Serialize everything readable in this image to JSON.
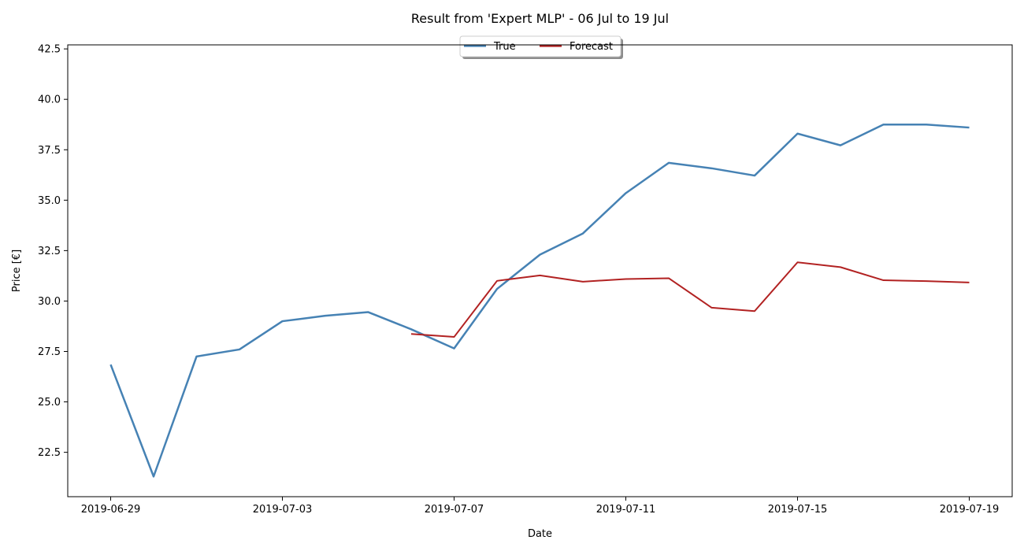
{
  "chart_data": {
    "type": "line",
    "title": "Result from 'Expert MLP' - 06 Jul to 19 Jul",
    "xlabel": "Date",
    "ylabel": "Price [€]",
    "xlim": [
      "2019-06-28",
      "2019-07-20"
    ],
    "ylim": [
      20.3,
      42.7
    ],
    "x_ticks": [
      "2019-06-29",
      "2019-07-03",
      "2019-07-07",
      "2019-07-11",
      "2019-07-15",
      "2019-07-19"
    ],
    "y_ticks": [
      "22.5",
      "25.0",
      "27.5",
      "30.0",
      "32.5",
      "35.0",
      "37.5",
      "40.0",
      "42.5"
    ],
    "legend": {
      "placement": "top-center",
      "columns": 2
    },
    "grid": false,
    "series": [
      {
        "name": "True",
        "color": "#4682b4",
        "x": [
          "2019-06-29",
          "2019-06-30",
          "2019-07-01",
          "2019-07-02",
          "2019-07-03",
          "2019-07-04",
          "2019-07-05",
          "2019-07-06",
          "2019-07-07",
          "2019-07-08",
          "2019-07-09",
          "2019-07-10",
          "2019-07-11",
          "2019-07-12",
          "2019-07-13",
          "2019-07-14",
          "2019-07-15",
          "2019-07-16",
          "2019-07-17",
          "2019-07-18",
          "2019-07-19"
        ],
        "values": [
          26.85,
          21.3,
          27.25,
          27.6,
          29.0,
          29.27,
          29.45,
          28.6,
          27.65,
          30.6,
          32.3,
          33.35,
          35.35,
          36.85,
          36.58,
          36.22,
          38.3,
          37.72,
          38.75,
          38.75,
          38.6
        ]
      },
      {
        "name": "Forecast",
        "color": "#b22222",
        "x": [
          "2019-07-06",
          "2019-07-07",
          "2019-07-08",
          "2019-07-09",
          "2019-07-10",
          "2019-07-11",
          "2019-07-12",
          "2019-07-13",
          "2019-07-14",
          "2019-07-15",
          "2019-07-16",
          "2019-07-17",
          "2019-07-18",
          "2019-07-19"
        ],
        "values": [
          28.37,
          28.22,
          31.0,
          31.27,
          30.96,
          31.09,
          31.13,
          29.67,
          29.5,
          31.92,
          31.68,
          31.03,
          30.99,
          30.92
        ]
      }
    ]
  }
}
